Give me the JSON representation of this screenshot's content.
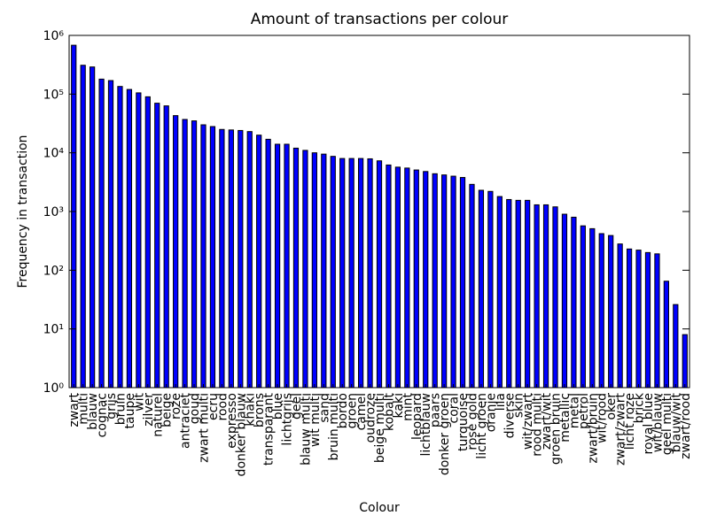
{
  "chart_data": {
    "type": "bar",
    "title": "Amount of transactions per colour",
    "xlabel": "Colour",
    "ylabel": "Frequency in transaction",
    "log_scale": true,
    "color": "#0000ff",
    "categories": [
      "zwart",
      "multi",
      "blauw",
      "cognac",
      "grijs",
      "bruin",
      "taupe",
      "wit",
      "zilver",
      "naturel",
      "beige",
      "roze",
      "antraciet",
      "goud",
      "zwart multi",
      "ecru",
      "rood",
      "expresso",
      "donker blauw",
      "khaki",
      "brons",
      "transparant",
      "blue",
      "lichtgrijs",
      "geel",
      "blauw multi",
      "wit multi",
      "sand",
      "bruin multi",
      "bordo",
      "groen",
      "camel",
      "oudroze",
      "beige multi",
      "kobalt",
      "kaki",
      "mint",
      "leopard",
      "lichtblauw",
      "paars",
      "donker groen",
      "coral",
      "turquoise",
      "rose gold",
      "licht groen",
      "oranje",
      "lila",
      "diverse",
      "skin",
      "wit/zwart",
      "rood multi",
      "zwart/wit",
      "groen bruin",
      "metallic",
      "metal",
      "petrol",
      "zwart/bruin",
      "wit/rood",
      "oker",
      "zwart/zwart",
      "licht roze",
      "brick",
      "royal blue",
      "wit/blauw",
      "geel multi",
      "blauw/wit",
      "zwart/rood"
    ],
    "values": [
      680000,
      310000,
      290000,
      180000,
      170000,
      135000,
      120000,
      105000,
      90000,
      70000,
      63000,
      43000,
      37000,
      35000,
      30000,
      28000,
      25000,
      24500,
      24000,
      23000,
      20000,
      17000,
      14000,
      14000,
      12000,
      11000,
      10000,
      9500,
      8700,
      8000,
      8000,
      8000,
      7900,
      7300,
      6200,
      5700,
      5500,
      5100,
      4800,
      4400,
      4200,
      4000,
      3800,
      2900,
      2300,
      2200,
      1800,
      1600,
      1550,
      1550,
      1300,
      1300,
      1200,
      900,
      800,
      570,
      510,
      420,
      390,
      280,
      230,
      220,
      200,
      190,
      65,
      26,
      8
    ],
    "ylim": [
      1,
      1000000
    ],
    "yticks": [
      {
        "value": 1,
        "label": "10⁰"
      },
      {
        "value": 10,
        "label": "10¹"
      },
      {
        "value": 100,
        "label": "10²"
      },
      {
        "value": 1000,
        "label": "10³"
      },
      {
        "value": 10000,
        "label": "10⁴"
      },
      {
        "value": 100000,
        "label": "10⁵"
      },
      {
        "value": 1000000,
        "label": "10⁶"
      }
    ]
  }
}
